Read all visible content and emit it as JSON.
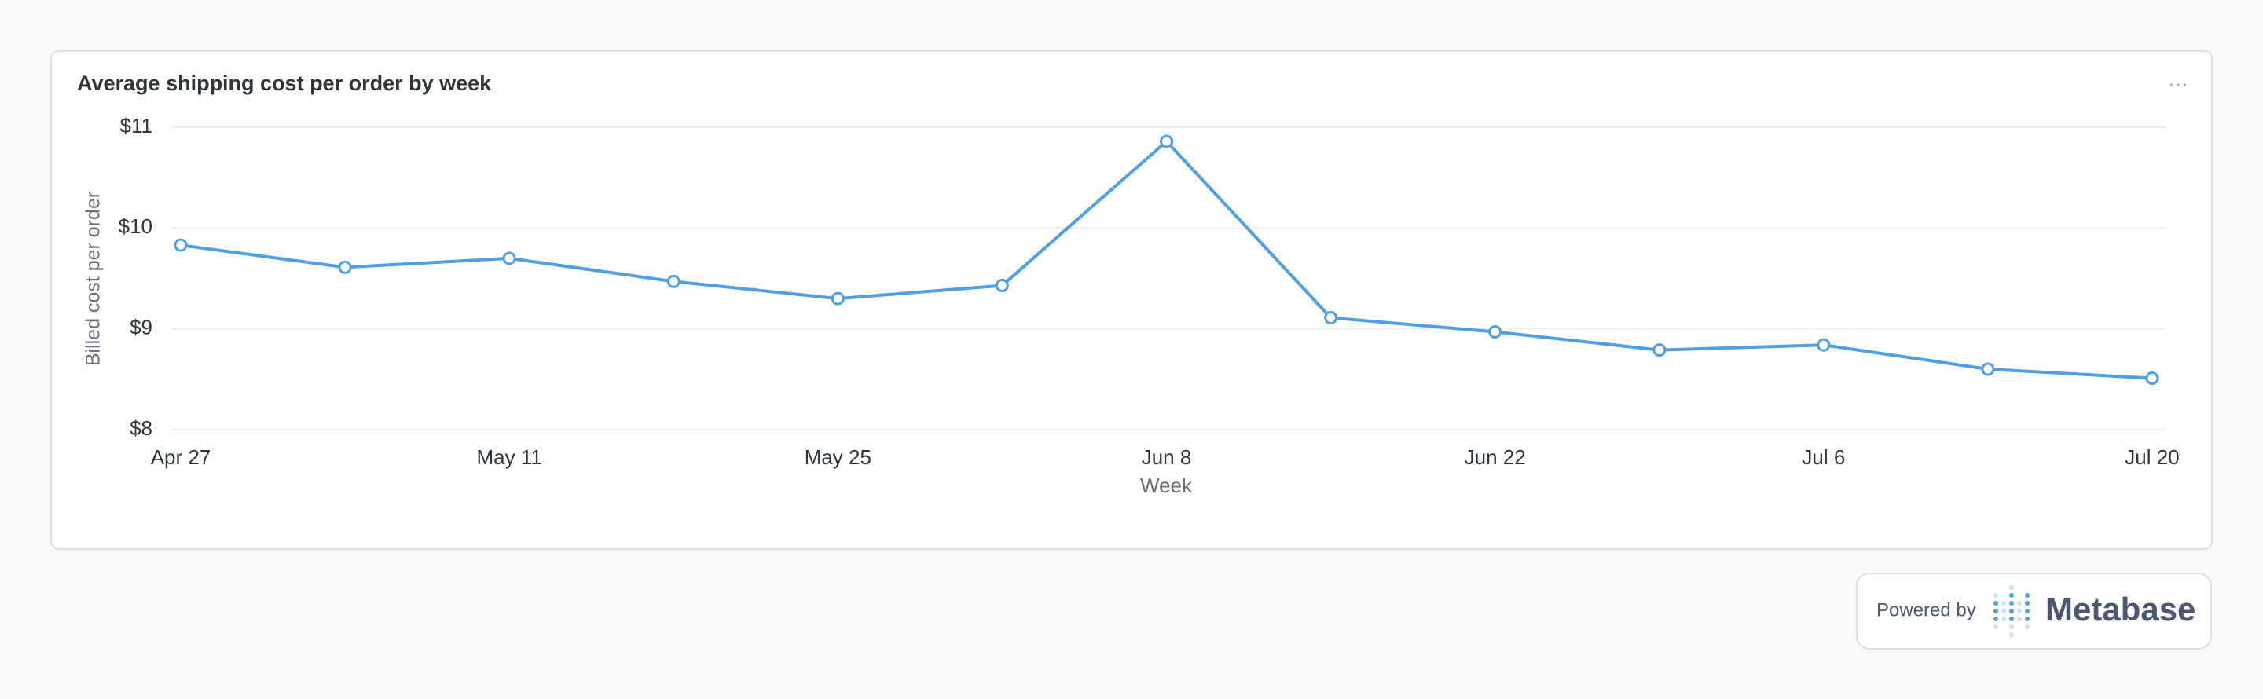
{
  "chart_data": {
    "type": "line",
    "title": "Average shipping cost per order by week",
    "x_label": "Week",
    "y_label": "Billed cost per order",
    "categories": [
      "Apr 27",
      null,
      "May 11",
      null,
      "May 25",
      null,
      "Jun 8",
      null,
      "Jun 22",
      null,
      "Jul 6",
      null,
      "Jul 20"
    ],
    "values": [
      9.83,
      9.61,
      9.7,
      9.47,
      9.3,
      9.43,
      10.86,
      9.11,
      8.97,
      8.79,
      8.84,
      8.6,
      8.51
    ],
    "color": "#509ee3",
    "ylim": [
      8,
      11
    ],
    "yticks": [
      {
        "value": 8,
        "label": "$8"
      },
      {
        "value": 9,
        "label": "$9"
      },
      {
        "value": 10,
        "label": "$10"
      },
      {
        "value": 11,
        "label": "$11"
      }
    ],
    "grid": true
  },
  "footer": {
    "powered_by": "Powered by",
    "brand": "Metabase"
  }
}
